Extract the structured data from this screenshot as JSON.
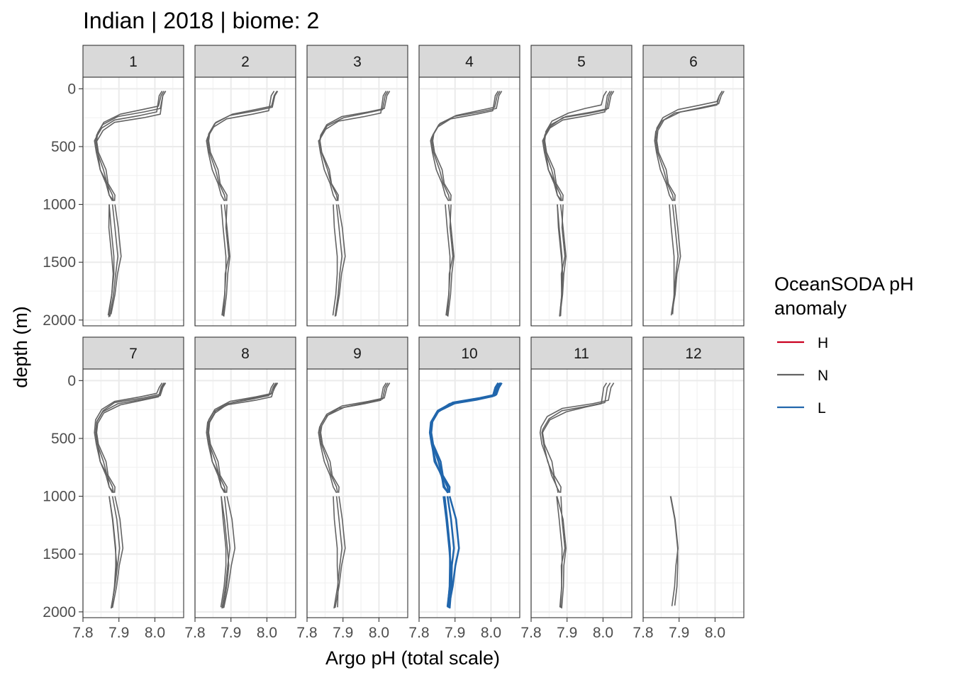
{
  "chart_data": {
    "type": "line",
    "title": "Indian | 2018 | biome: 2",
    "xlabel": "Argo pH (total scale)",
    "ylabel": "depth (m)",
    "xlim": [
      7.8,
      8.08
    ],
    "ylim": [
      2050,
      -100
    ],
    "y_reversed": true,
    "x_ticks": [
      "7.8",
      "7.9",
      "8.0"
    ],
    "y_ticks": [
      "0",
      "500",
      "1000",
      "1500",
      "2000"
    ],
    "grid": true,
    "legend": {
      "title": "OceanSODA pH\nanomaly",
      "position": "right",
      "entries": [
        {
          "label": "H",
          "color": "#ca0020"
        },
        {
          "label": "N",
          "color": "#636363"
        },
        {
          "label": "L",
          "color": "#2166ac"
        }
      ]
    },
    "panels": [
      {
        "label": "1",
        "anomaly": "N",
        "profiles": [
          {
            "surf": 8.03,
            "mix": 200,
            "min": 7.835,
            "deep": 7.895,
            "bottom": 7.875,
            "maxdepth": 1970
          },
          {
            "surf": 8.02,
            "mix": 230,
            "min": 7.832,
            "deep": 7.89,
            "bottom": 7.87,
            "maxdepth": 1960
          },
          {
            "surf": 8.025,
            "mix": 180,
            "min": 7.838,
            "deep": 7.9,
            "bottom": 7.878,
            "maxdepth": 1950
          },
          {
            "surf": 8.03,
            "mix": 250,
            "min": 7.836,
            "deep": 7.888,
            "bottom": 7.872,
            "maxdepth": 1975
          }
        ]
      },
      {
        "label": "2",
        "anomaly": "N",
        "profiles": [
          {
            "surf": 8.03,
            "mix": 190,
            "min": 7.835,
            "deep": 7.895,
            "bottom": 7.88,
            "maxdepth": 1970
          },
          {
            "surf": 8.02,
            "mix": 220,
            "min": 7.832,
            "deep": 7.89,
            "bottom": 7.875,
            "maxdepth": 1960
          },
          {
            "surf": 8.028,
            "mix": 180,
            "min": 7.838,
            "deep": 7.888,
            "bottom": 7.878,
            "maxdepth": 1965
          }
        ]
      },
      {
        "label": "3",
        "anomaly": "N",
        "profiles": [
          {
            "surf": 8.03,
            "mix": 200,
            "min": 7.835,
            "deep": 7.895,
            "bottom": 7.878,
            "maxdepth": 1970
          },
          {
            "surf": 8.02,
            "mix": 240,
            "min": 7.832,
            "deep": 7.888,
            "bottom": 7.872,
            "maxdepth": 1960
          },
          {
            "surf": 8.025,
            "mix": 210,
            "min": 7.836,
            "deep": 7.9,
            "bottom": 7.88,
            "maxdepth": 1965
          }
        ]
      },
      {
        "label": "4",
        "anomaly": "N",
        "profiles": [
          {
            "surf": 8.03,
            "mix": 200,
            "min": 7.835,
            "deep": 7.895,
            "bottom": 7.88,
            "maxdepth": 1970
          },
          {
            "surf": 8.02,
            "mix": 220,
            "min": 7.832,
            "deep": 7.89,
            "bottom": 7.875,
            "maxdepth": 1960
          },
          {
            "surf": 8.025,
            "mix": 190,
            "min": 7.838,
            "deep": 7.888,
            "bottom": 7.878,
            "maxdepth": 1965
          }
        ]
      },
      {
        "label": "5",
        "anomaly": "N",
        "profiles": [
          {
            "surf": 8.03,
            "mix": 200,
            "min": 7.835,
            "deep": 7.895,
            "bottom": 7.88,
            "maxdepth": 1970
          },
          {
            "surf": 8.02,
            "mix": 230,
            "min": 7.832,
            "deep": 7.89,
            "bottom": 7.88,
            "maxdepth": 1960
          },
          {
            "surf": 8.01,
            "mix": 170,
            "min": 7.838,
            "deep": 7.888,
            "bottom": 7.882,
            "maxdepth": 1965
          },
          {
            "surf": 8.025,
            "mix": 210,
            "min": 7.836,
            "deep": 7.892,
            "bottom": 7.879,
            "maxdepth": 1968
          }
        ]
      },
      {
        "label": "6",
        "anomaly": "N",
        "profiles": [
          {
            "surf": 8.02,
            "mix": 140,
            "min": 7.835,
            "deep": 7.895,
            "bottom": 7.878,
            "maxdepth": 1960
          },
          {
            "surf": 8.02,
            "mix": 170,
            "min": 7.832,
            "deep": 7.89,
            "bottom": 7.882,
            "maxdepth": 1950
          },
          {
            "surf": 8.025,
            "mix": 160,
            "min": 7.838,
            "deep": 7.898,
            "bottom": 7.88,
            "maxdepth": 1945
          }
        ]
      },
      {
        "label": "7",
        "anomaly": "N",
        "profiles": [
          {
            "surf": 8.03,
            "mix": 160,
            "min": 7.835,
            "deep": 7.9,
            "bottom": 7.878,
            "maxdepth": 1970
          },
          {
            "surf": 8.02,
            "mix": 140,
            "min": 7.832,
            "deep": 7.895,
            "bottom": 7.88,
            "maxdepth": 1960
          },
          {
            "surf": 8.025,
            "mix": 170,
            "min": 7.838,
            "deep": 7.905,
            "bottom": 7.882,
            "maxdepth": 1965
          },
          {
            "surf": 8.028,
            "mix": 150,
            "min": 7.836,
            "deep": 7.898,
            "bottom": 7.879,
            "maxdepth": 1968
          }
        ]
      },
      {
        "label": "8",
        "anomaly": "N",
        "profiles": [
          {
            "surf": 8.03,
            "mix": 140,
            "min": 7.835,
            "deep": 7.895,
            "bottom": 7.875,
            "maxdepth": 1970
          },
          {
            "surf": 8.02,
            "mix": 160,
            "min": 7.832,
            "deep": 7.89,
            "bottom": 7.872,
            "maxdepth": 1960
          },
          {
            "surf": 8.025,
            "mix": 150,
            "min": 7.838,
            "deep": 7.905,
            "bottom": 7.88,
            "maxdepth": 1965
          },
          {
            "surf": 8.028,
            "mix": 170,
            "min": 7.836,
            "deep": 7.898,
            "bottom": 7.878,
            "maxdepth": 1968
          }
        ]
      },
      {
        "label": "9",
        "anomaly": "N",
        "profiles": [
          {
            "surf": 8.03,
            "mix": 180,
            "min": 7.835,
            "deep": 7.895,
            "bottom": 7.875,
            "maxdepth": 1970
          },
          {
            "surf": 8.02,
            "mix": 200,
            "min": 7.832,
            "deep": 7.888,
            "bottom": 7.885,
            "maxdepth": 1960
          },
          {
            "surf": 8.025,
            "mix": 190,
            "min": 7.838,
            "deep": 7.9,
            "bottom": 7.878,
            "maxdepth": 1965
          }
        ]
      },
      {
        "label": "10",
        "anomaly": "L",
        "profiles": [
          {
            "surf": 8.03,
            "mix": 150,
            "min": 7.832,
            "deep": 7.895,
            "bottom": 7.885,
            "maxdepth": 1970
          },
          {
            "surf": 8.025,
            "mix": 160,
            "min": 7.83,
            "deep": 7.89,
            "bottom": 7.88,
            "maxdepth": 1960
          },
          {
            "surf": 8.028,
            "mix": 155,
            "min": 7.834,
            "deep": 7.905,
            "bottom": 7.882,
            "maxdepth": 1965
          },
          {
            "surf": 8.02,
            "mix": 165,
            "min": 7.831,
            "deep": 7.892,
            "bottom": 7.879,
            "maxdepth": 1955
          }
        ]
      },
      {
        "label": "11",
        "anomaly": "N",
        "profiles": [
          {
            "surf": 8.03,
            "mix": 200,
            "min": 7.825,
            "deep": 7.895,
            "bottom": 7.885,
            "maxdepth": 1970
          },
          {
            "surf": 8.02,
            "mix": 220,
            "min": 7.83,
            "deep": 7.89,
            "bottom": 7.88,
            "maxdepth": 1960
          },
          {
            "surf": 8.01,
            "mix": 230,
            "min": 7.832,
            "deep": 7.888,
            "bottom": 7.882,
            "maxdepth": 1965
          }
        ]
      },
      {
        "label": "12",
        "anomaly": "N",
        "profiles": [
          {
            "surf": null,
            "mix": null,
            "min": null,
            "deep": 7.895,
            "bottom": 7.88,
            "maxdepth": 1950,
            "start": 1000
          },
          {
            "surf": null,
            "mix": null,
            "min": null,
            "deep": 7.9,
            "bottom": 7.888,
            "maxdepth": 1945,
            "start": 1000
          }
        ]
      }
    ]
  }
}
